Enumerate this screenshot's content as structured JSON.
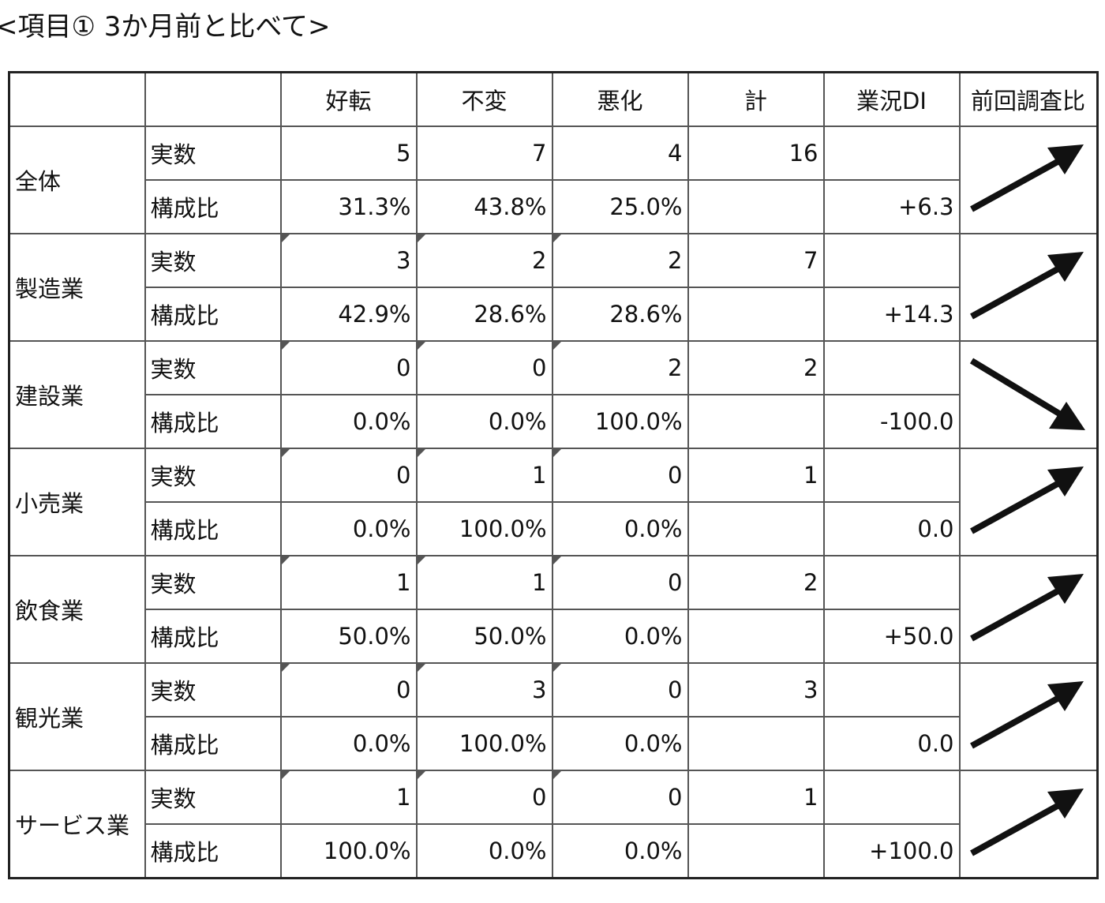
{
  "title": "<項目① 3か月前と比べて>",
  "headers": [
    "",
    "",
    "好転",
    "不変",
    "悪化",
    "計",
    "業況DI",
    "前回調査比"
  ],
  "row_labels": {
    "count": "実数",
    "ratio": "構成比"
  },
  "groups": [
    {
      "name": "全体",
      "count": [
        "5",
        "7",
        "4",
        "16"
      ],
      "ratio": [
        "31.3%",
        "43.8%",
        "25.0%"
      ],
      "di": "+6.3",
      "trend": "up",
      "trend_icon": "arrow-up-right-icon"
    },
    {
      "name": "製造業",
      "count": [
        "3",
        "2",
        "2",
        "7"
      ],
      "ratio": [
        "42.9%",
        "28.6%",
        "28.6%"
      ],
      "di": "+14.3",
      "trend": "up",
      "trend_icon": "arrow-up-right-icon"
    },
    {
      "name": "建設業",
      "count": [
        "0",
        "0",
        "2",
        "2"
      ],
      "ratio": [
        "0.0%",
        "0.0%",
        "100.0%"
      ],
      "di": "-100.0",
      "trend": "down",
      "trend_icon": "arrow-down-right-icon"
    },
    {
      "name": "小売業",
      "count": [
        "0",
        "1",
        "0",
        "1"
      ],
      "ratio": [
        "0.0%",
        "100.0%",
        "0.0%"
      ],
      "di": "0.0",
      "trend": "up",
      "trend_icon": "arrow-up-right-icon"
    },
    {
      "name": "飲食業",
      "count": [
        "1",
        "1",
        "0",
        "2"
      ],
      "ratio": [
        "50.0%",
        "50.0%",
        "0.0%"
      ],
      "di": "+50.0",
      "trend": "up",
      "trend_icon": "arrow-up-right-icon"
    },
    {
      "name": "観光業",
      "count": [
        "0",
        "3",
        "0",
        "3"
      ],
      "ratio": [
        "0.0%",
        "100.0%",
        "0.0%"
      ],
      "di": "0.0",
      "trend": "up",
      "trend_icon": "arrow-up-right-icon"
    },
    {
      "name": "サービス業",
      "count": [
        "1",
        "0",
        "0",
        "1"
      ],
      "ratio": [
        "100.0%",
        "0.0%",
        "0.0%"
      ],
      "di": "+100.0",
      "trend": "up",
      "trend_icon": "arrow-up-right-icon"
    }
  ]
}
